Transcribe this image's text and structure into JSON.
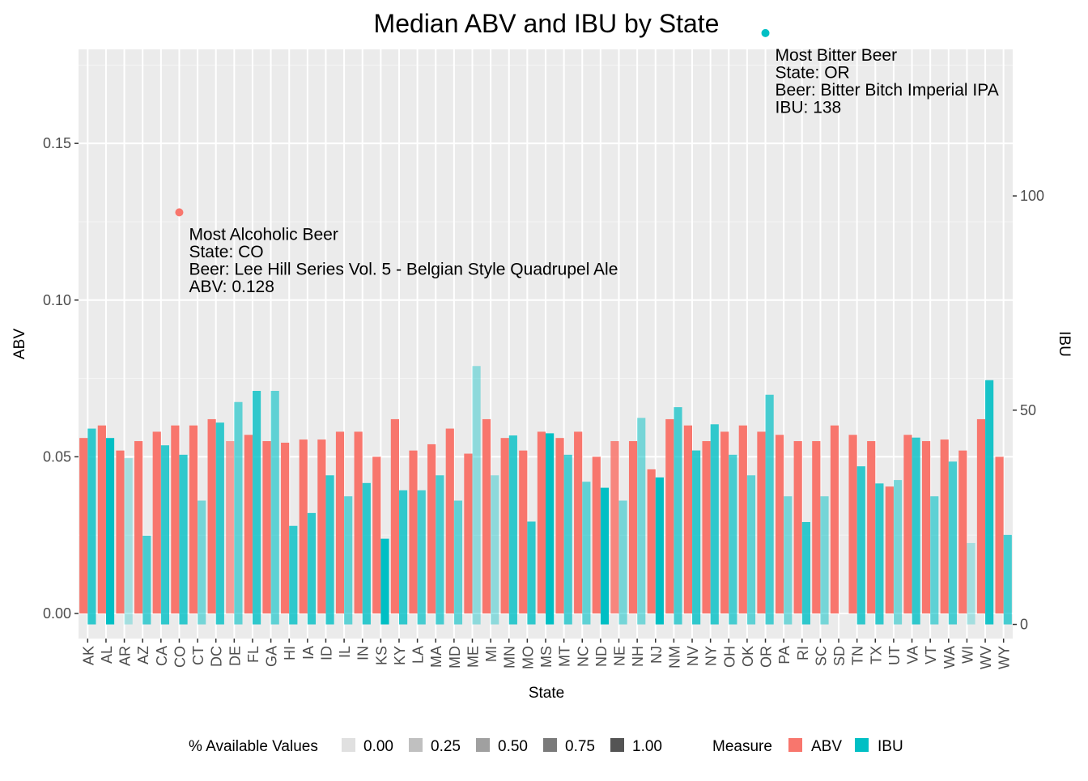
{
  "chart_data": {
    "type": "bar",
    "title": "Median ABV and IBU by State",
    "xlabel": "State",
    "ylabel_left": "ABV",
    "ylabel_right": "IBU",
    "ylim_left": [
      -0.008,
      0.18
    ],
    "ylim_right": [
      -3.3,
      134.2
    ],
    "ticks_left": [
      {
        "value": 0.0,
        "label": "0.00"
      },
      {
        "value": 0.05,
        "label": "0.05"
      },
      {
        "value": 0.1,
        "label": "0.10"
      },
      {
        "value": 0.15,
        "label": "0.15"
      }
    ],
    "ticks_right": [
      {
        "value": 0,
        "label": "0"
      },
      {
        "value": 50,
        "label": "50"
      },
      {
        "value": 100,
        "label": "100"
      }
    ],
    "categories": [
      "AK",
      "AL",
      "AR",
      "AZ",
      "CA",
      "CO",
      "CT",
      "DC",
      "DE",
      "FL",
      "GA",
      "HI",
      "IA",
      "ID",
      "IL",
      "IN",
      "KS",
      "KY",
      "LA",
      "MA",
      "MD",
      "ME",
      "MI",
      "MN",
      "MO",
      "MS",
      "MT",
      "NC",
      "ND",
      "NE",
      "NH",
      "NJ",
      "NM",
      "NV",
      "NY",
      "OH",
      "OK",
      "OR",
      "PA",
      "RI",
      "SC",
      "SD",
      "TN",
      "TX",
      "UT",
      "VA",
      "VT",
      "WA",
      "WI",
      "WV",
      "WY"
    ],
    "series": [
      {
        "name": "ABV",
        "color": "#F8766D",
        "values": [
          0.056,
          0.06,
          0.052,
          0.055,
          0.058,
          0.06,
          0.06,
          0.062,
          0.055,
          0.057,
          0.055,
          0.0545,
          0.0555,
          0.0555,
          0.058,
          0.058,
          0.05,
          0.062,
          0.052,
          0.054,
          0.059,
          0.051,
          0.062,
          0.056,
          0.052,
          0.058,
          0.056,
          0.058,
          0.05,
          0.055,
          0.055,
          0.046,
          0.062,
          0.06,
          0.055,
          0.058,
          0.06,
          0.058,
          0.057,
          0.055,
          0.055,
          0.06,
          0.057,
          0.055,
          0.0405,
          0.057,
          0.055,
          0.0555,
          0.052,
          0.062,
          0.05
        ],
        "availability": [
          1,
          1,
          1,
          1,
          1,
          1,
          1,
          1,
          0.5,
          1,
          1,
          1,
          1,
          1,
          1,
          1,
          1,
          1,
          1,
          1,
          1,
          1,
          1,
          1,
          1,
          1,
          1,
          1,
          1,
          0.8,
          1,
          1,
          1,
          1,
          1,
          1,
          1,
          1,
          1,
          1,
          1,
          1,
          1,
          1,
          1,
          1,
          1,
          1,
          1,
          1,
          1
        ]
      },
      {
        "name": "IBU",
        "color": "#00BFC4",
        "values": [
          45.7,
          43.5,
          38.8,
          20.7,
          41.8,
          39.6,
          28.9,
          47.1,
          51.9,
          54.5,
          54.5,
          23.0,
          26.0,
          34.8,
          29.9,
          33.0,
          20.0,
          31.3,
          31.3,
          34.8,
          28.9,
          60.3,
          34.8,
          44.1,
          24.0,
          44.6,
          39.6,
          33.3,
          31.9,
          28.9,
          48.2,
          34.3,
          50.7,
          40.6,
          46.7,
          39.6,
          34.8,
          53.6,
          29.9,
          23.9,
          29.9,
          0.0,
          36.9,
          32.9,
          33.7,
          43.6,
          29.9,
          38.0,
          19.0,
          57.0,
          20.9
        ]
      }
    ],
    "ibu_alpha": [
      0.8,
      1,
      0.3,
      0.7,
      0.8,
      0.8,
      0.5,
      0.8,
      0.6,
      0.8,
      0.6,
      0.8,
      0.8,
      0.8,
      0.6,
      0.8,
      1,
      0.8,
      0.7,
      0.7,
      0.6,
      0.4,
      0.4,
      0.8,
      0.8,
      1,
      0.7,
      0.6,
      1,
      0.5,
      0.5,
      1,
      0.7,
      0.8,
      0.8,
      0.7,
      0.6,
      0.7,
      0.5,
      0.8,
      0.5,
      1,
      0.8,
      0.8,
      0.5,
      0.8,
      0.6,
      0.7,
      0.3,
      0.9,
      0.7
    ],
    "highlights": [
      {
        "series": "ABV",
        "category": "CO",
        "value": 0.128,
        "color": "#F8766D",
        "label_lines": [
          "Most Alcoholic Beer",
          "State: CO",
          "Beer: Lee Hill Series Vol. 5 - Belgian Style Quadrupel Ale",
          "ABV: 0.128"
        ]
      },
      {
        "series": "IBU",
        "category": "OR",
        "value": 138,
        "color": "#00BFC4",
        "label_lines": [
          "Most Bitter Beer",
          "State: OR",
          "Beer: Bitter Bitch Imperial IPA",
          "IBU: 138"
        ]
      }
    ],
    "grid": true,
    "legend_position": "bottom",
    "legend": {
      "availability_title": "% Available Values",
      "availability_items": [
        {
          "label": "0.00",
          "color": "#E0E0E0"
        },
        {
          "label": "0.25",
          "color": "#C0C0C0"
        },
        {
          "label": "0.50",
          "color": "#A0A0A0"
        },
        {
          "label": "0.75",
          "color": "#7A7A7A"
        },
        {
          "label": "1.00",
          "color": "#545454"
        }
      ],
      "measure_title": "Measure",
      "measure_items": [
        {
          "label": "ABV",
          "color": "#F8766D"
        },
        {
          "label": "IBU",
          "color": "#00BFC4"
        }
      ]
    }
  }
}
